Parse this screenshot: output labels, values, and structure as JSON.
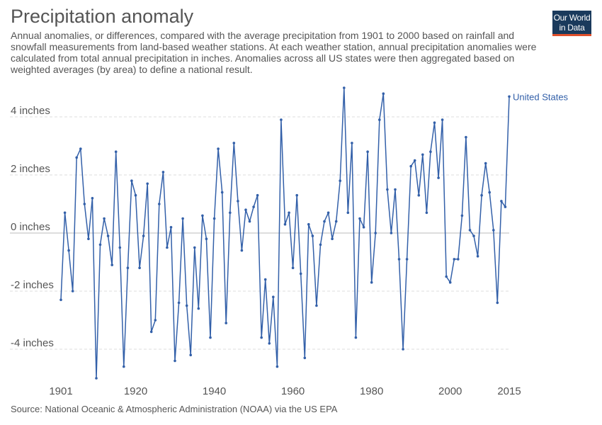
{
  "header": {
    "title": "Precipitation anomaly",
    "subtitle": "Annual anomalies, or differences, compared with the average precipitation from 1901 to 2000 based on rainfall and snowfall measurements from land-based weather stations. At each weather station, annual precipitation anomalies were calculated from total annual precipitation in inches. Anomalies across all US states were then aggregated based on weighted averages (by area) to define a national result."
  },
  "logo": {
    "line1": "Our World",
    "line2": "in Data"
  },
  "footer": {
    "source": "Source: National Oceanic & Atmospheric Administration (NOAA) via the US EPA"
  },
  "colors": {
    "series": "#3360a9",
    "grid": "#dddddd",
    "zero": "#bbbbbb",
    "text": "#555555"
  },
  "chart_data": {
    "type": "line",
    "xlim": [
      1901,
      2015
    ],
    "ylim": [
      -5,
      5
    ],
    "x_ticks": [
      {
        "value": 1901,
        "label": "1901"
      },
      {
        "value": 1920,
        "label": "1920"
      },
      {
        "value": 1940,
        "label": "1940"
      },
      {
        "value": 1960,
        "label": "1960"
      },
      {
        "value": 1980,
        "label": "1980"
      },
      {
        "value": 2000,
        "label": "2000"
      },
      {
        "value": 2015,
        "label": "2015"
      }
    ],
    "y_ticks": [
      {
        "value": 4,
        "label": "4 inches"
      },
      {
        "value": 2,
        "label": "2 inches"
      },
      {
        "value": 0,
        "label": "0 inches"
      },
      {
        "value": -2,
        "label": "-2 inches"
      },
      {
        "value": -4,
        "label": "-4 inches"
      }
    ],
    "grid": true,
    "series": [
      {
        "name": "United States",
        "x_start": 1901,
        "values": [
          -2.3,
          0.7,
          -0.6,
          -2.0,
          2.6,
          2.9,
          1.0,
          -0.2,
          1.2,
          -5.0,
          -0.4,
          0.5,
          -0.1,
          -1.1,
          2.8,
          -0.5,
          -4.6,
          -1.2,
          1.8,
          1.3,
          -1.2,
          -0.1,
          1.7,
          -3.4,
          -3.0,
          1.0,
          2.1,
          -0.5,
          0.2,
          -4.4,
          -2.4,
          0.5,
          -2.5,
          -4.2,
          -0.5,
          -2.6,
          0.6,
          -0.2,
          -3.6,
          0.5,
          2.9,
          1.4,
          -3.1,
          0.7,
          3.1,
          1.1,
          -0.6,
          0.8,
          0.4,
          0.9,
          1.3,
          -3.6,
          -1.6,
          -3.8,
          -2.2,
          -4.6,
          3.9,
          0.3,
          0.7,
          -1.2,
          1.3,
          -1.4,
          -4.3,
          0.3,
          -0.1,
          -2.5,
          -0.4,
          0.4,
          0.7,
          -0.2,
          0.4,
          1.8,
          5.0,
          0.7,
          3.1,
          -3.6,
          0.5,
          0.2,
          2.8,
          -1.7,
          0.0,
          3.9,
          4.8,
          1.5,
          0.0,
          1.5,
          -0.9,
          -4.0,
          -0.9,
          2.3,
          2.5,
          1.3,
          2.7,
          0.7,
          2.8,
          3.8,
          1.9,
          3.9,
          -1.5,
          -1.7,
          -0.9,
          -0.9,
          0.6,
          3.3,
          0.1,
          -0.1,
          -0.8,
          1.3,
          2.4,
          1.4,
          0.1,
          -2.4,
          1.1,
          0.9,
          4.7
        ]
      }
    ]
  }
}
